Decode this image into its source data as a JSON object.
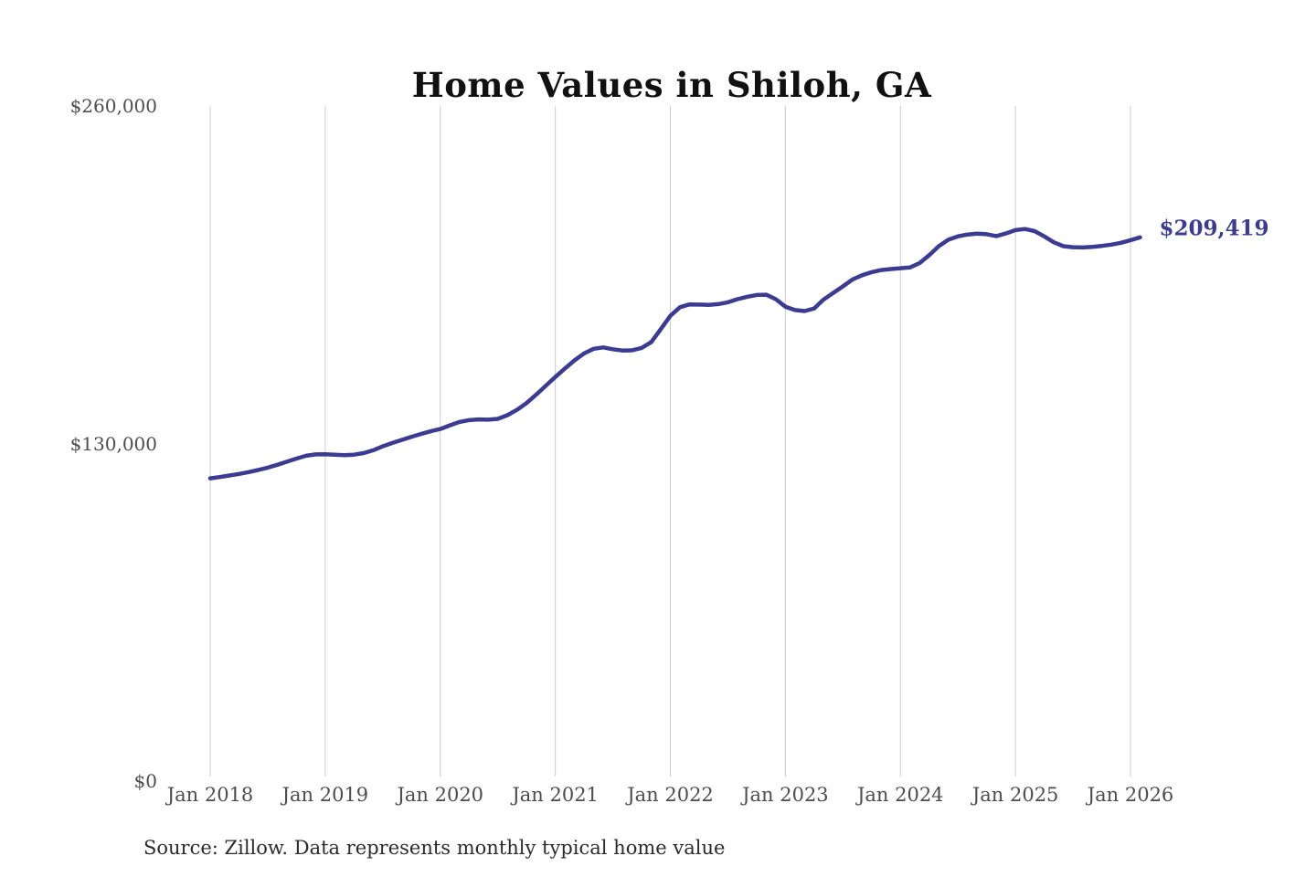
{
  "source_note": "Source: Zillow. Data represents monthly typical home value",
  "chart_data": {
    "type": "line",
    "title": "Home Values in Shiloh, GA",
    "xlabel": "",
    "ylabel": "",
    "ylim": [
      0,
      260000
    ],
    "grid": "vertical-only",
    "legend": "none",
    "line_color": "#3c3b92",
    "grid_color": "#cccccc",
    "axis_text_color": "#4d4d4d",
    "title_color": "#111111",
    "end_label": "$209,419",
    "end_value": 209419,
    "x_tick_labels": [
      "Jan 2018",
      "Jan 2019",
      "Jan 2020",
      "Jan 2021",
      "Jan 2022",
      "Jan 2023",
      "Jan 2024",
      "Jan 2025",
      "Jan 2026"
    ],
    "y_ticks": [
      {
        "label": "$0",
        "value": 0
      },
      {
        "label": "$130,000",
        "value": 130000
      },
      {
        "label": "$260,000",
        "value": 260000
      }
    ],
    "x_range": {
      "start": "2018-01",
      "end": "2026-02",
      "step": "month"
    },
    "series": [
      {
        "name": "Monthly typical home value",
        "values": [
          116600,
          117100,
          117700,
          118300,
          119000,
          119800,
          120700,
          121800,
          123000,
          124200,
          125300,
          125800,
          125900,
          125700,
          125500,
          125700,
          126300,
          127400,
          128900,
          130200,
          131400,
          132600,
          133700,
          134700,
          135600,
          137000,
          138300,
          139000,
          139300,
          139200,
          139500,
          140900,
          143000,
          145600,
          148800,
          152200,
          155600,
          158900,
          162000,
          164700,
          166500,
          167000,
          166300,
          165800,
          165900,
          166800,
          169000,
          174000,
          179200,
          182500,
          183600,
          183500,
          183400,
          183700,
          184400,
          185600,
          186500,
          187200,
          187300,
          185600,
          182700,
          181400,
          181000,
          182000,
          185500,
          188000,
          190500,
          193200,
          194800,
          196000,
          196800,
          197200,
          197500,
          197800,
          199500,
          202500,
          206000,
          208500,
          209800,
          210500,
          210800,
          210600,
          209900,
          210900,
          212200,
          212600,
          211800,
          209800,
          207500,
          206000,
          205600,
          205500,
          205700,
          206100,
          206600,
          207300,
          208300,
          209419
        ]
      }
    ]
  }
}
